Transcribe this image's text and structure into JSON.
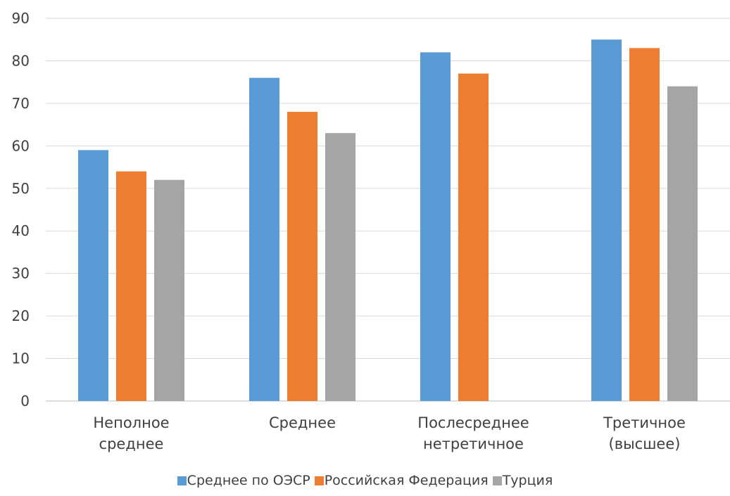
{
  "chart_data": {
    "type": "bar",
    "categories": [
      [
        "Неполное",
        "среднее"
      ],
      [
        "Среднее"
      ],
      [
        "Послесреднее",
        "нетретичное"
      ],
      [
        "Третичное",
        "(высшее)"
      ]
    ],
    "series": [
      {
        "name": "Среднее по ОЭСР",
        "color": "#5B9BD5",
        "values": [
          59,
          76,
          82,
          85
        ]
      },
      {
        "name": "Российская Федерация",
        "color": "#ED7D31",
        "values": [
          54,
          68,
          77,
          83
        ]
      },
      {
        "name": "Турция",
        "color": "#A5A5A5",
        "values": [
          52,
          63,
          null,
          74
        ]
      }
    ],
    "ylim": [
      0,
      90
    ],
    "yticks": [
      0,
      10,
      20,
      30,
      40,
      50,
      60,
      70,
      80,
      90
    ],
    "grid": true,
    "legend_position": "bottom"
  }
}
